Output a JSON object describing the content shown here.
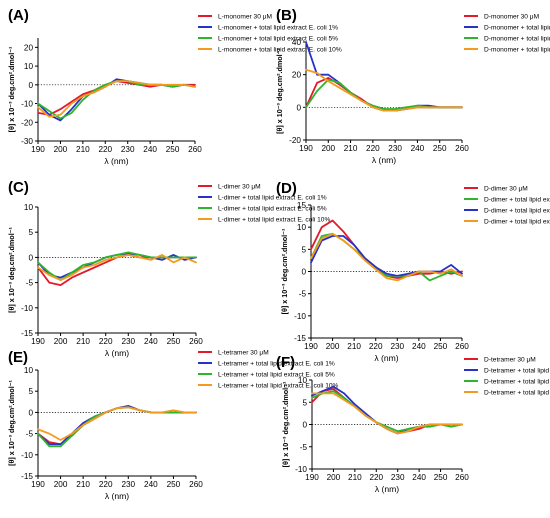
{
  "chart_data": [
    {
      "type": "line",
      "panel": "(A)",
      "xlabel": "λ (nm)",
      "ylabel": "[θ] x 10⁻³ deg.cm².dmol⁻¹",
      "xlim": [
        190,
        260
      ],
      "ylim": [
        -30,
        25
      ],
      "xticks": [
        190,
        200,
        210,
        220,
        230,
        240,
        250,
        260
      ],
      "yticks": [
        -30,
        -20,
        -10,
        0,
        10,
        20
      ],
      "legend_position": "top-right",
      "x": [
        190,
        195,
        200,
        205,
        210,
        215,
        220,
        225,
        230,
        235,
        240,
        245,
        250,
        255,
        260
      ],
      "series": [
        {
          "name": "L-monomer 30 μM",
          "color": "#e3192c",
          "values": [
            -15,
            -16,
            -13,
            -9,
            -5,
            -3,
            0,
            2,
            1,
            0,
            -1,
            0,
            -1,
            0,
            0
          ]
        },
        {
          "name": "L-monomer + total lipid extract E. coli 1%",
          "color": "#2832c8",
          "values": [
            -10,
            -16,
            -19,
            -13,
            -6,
            -4,
            -1,
            3,
            2,
            1,
            0,
            0,
            -1,
            0,
            -1
          ]
        },
        {
          "name": "L-monomer + total lipid extract E. coli 5%",
          "color": "#2db52d",
          "values": [
            -10,
            -14,
            -18,
            -15,
            -8,
            -3,
            0,
            2,
            2,
            0,
            0,
            0,
            -1,
            0,
            -1
          ]
        },
        {
          "name": "L-monomer + total lipid extract E. coli 10%",
          "color": "#f39a1f",
          "values": [
            -12,
            -17,
            -16,
            -10,
            -6,
            -4,
            -1,
            2,
            2,
            1,
            0,
            0,
            0,
            0,
            -1
          ]
        }
      ]
    },
    {
      "type": "line",
      "panel": "(B)",
      "xlabel": "λ (nm)",
      "ylabel": "[θ] x 10⁻³ deg.cm².dmol⁻¹",
      "xlim": [
        190,
        260
      ],
      "ylim": [
        -20,
        40
      ],
      "xticks": [
        190,
        200,
        210,
        220,
        230,
        240,
        250,
        260
      ],
      "yticks": [
        -20,
        0,
        20,
        40
      ],
      "legend_position": "top-right",
      "x": [
        190,
        195,
        200,
        205,
        210,
        215,
        220,
        225,
        230,
        235,
        240,
        245,
        250,
        255,
        260
      ],
      "series": [
        {
          "name": "D-monomer 30 μM",
          "color": "#e3192c",
          "values": [
            0,
            15,
            18,
            14,
            9,
            5,
            0,
            -2,
            -2,
            -1,
            0,
            0,
            0,
            0,
            0
          ]
        },
        {
          "name": "D-monomer + total lipid extract E. coli 1%",
          "color": "#2832c8",
          "values": [
            40,
            20,
            20,
            15,
            9,
            4,
            1,
            -1,
            -2,
            -1,
            1,
            1,
            0,
            0,
            0
          ]
        },
        {
          "name": "D-monomer + total lipid extract E. coli 5%",
          "color": "#2db52d",
          "values": [
            0,
            10,
            17,
            15,
            9,
            4,
            1,
            -1,
            -1,
            0,
            1,
            0,
            0,
            0,
            0
          ]
        },
        {
          "name": "D-monomer + total lipid extract E. coli 10%",
          "color": "#f39a1f",
          "values": [
            23,
            21,
            16,
            12,
            8,
            4,
            0,
            -2,
            -2,
            -1,
            0,
            0,
            0,
            0,
            0
          ]
        }
      ]
    },
    {
      "type": "line",
      "panel": "(C)",
      "xlabel": "λ (nm)",
      "ylabel": "[θ] x 10⁻³ deg.cm².dmol⁻¹",
      "xlim": [
        190,
        260
      ],
      "ylim": [
        -15,
        10
      ],
      "xticks": [
        190,
        200,
        210,
        220,
        230,
        240,
        250,
        260
      ],
      "yticks": [
        -15,
        -10,
        -5,
        0,
        5,
        10
      ],
      "legend_position": "top-right",
      "x": [
        190,
        195,
        200,
        205,
        210,
        215,
        220,
        225,
        230,
        235,
        240,
        245,
        250,
        255,
        260
      ],
      "series": [
        {
          "name": "L-dimer 30 μM",
          "color": "#e3192c",
          "values": [
            -2,
            -5,
            -5.5,
            -4,
            -3,
            -2,
            -1,
            0,
            0.5,
            0,
            0,
            0,
            0,
            0,
            0
          ]
        },
        {
          "name": "L-dimer + total lipid extract E. coli 1%",
          "color": "#2832c8",
          "values": [
            -1,
            -3.5,
            -4,
            -3,
            -2,
            -1,
            0,
            0.5,
            0.8,
            0.5,
            0,
            -0.5,
            0.5,
            -0.5,
            0
          ]
        },
        {
          "name": "L-dimer + total lipid extract E. coli 5%",
          "color": "#2db52d",
          "values": [
            -1,
            -3,
            -4.5,
            -3,
            -1.5,
            -1,
            0,
            0.5,
            1,
            0.5,
            0,
            0,
            0,
            0,
            0
          ]
        },
        {
          "name": "L-dimer + total lipid extract E. coli 10%",
          "color": "#f39a1f",
          "values": [
            -2,
            -3.5,
            -4.5,
            -3.5,
            -2,
            -1.5,
            -0.5,
            0,
            0.5,
            0,
            -0.5,
            0.5,
            -1,
            0,
            -1
          ]
        }
      ]
    },
    {
      "type": "line",
      "panel": "(D)",
      "xlabel": "λ (nm)",
      "ylabel": "[θ] x 10⁻³ deg.cm².dmol⁻¹",
      "xlim": [
        190,
        260
      ],
      "ylim": [
        -15,
        15
      ],
      "xticks": [
        190,
        200,
        210,
        220,
        230,
        240,
        250,
        260
      ],
      "yticks": [
        -15,
        -10,
        -5,
        0,
        5,
        10,
        15
      ],
      "legend_position": "top-right",
      "x": [
        190,
        195,
        200,
        205,
        210,
        215,
        220,
        225,
        230,
        235,
        240,
        245,
        250,
        255,
        260
      ],
      "series": [
        {
          "name": "D-dimer 30 μM",
          "color": "#e3192c",
          "values": [
            5,
            10,
            11.5,
            9,
            6,
            3,
            1,
            -1,
            -1.5,
            -1,
            -0.5,
            -0.5,
            0,
            -0.5,
            0
          ]
        },
        {
          "name": "D-dimer + total lipid extract E. coli 1%",
          "color": "#2db52d",
          "values": [
            3,
            8,
            8.5,
            7,
            5,
            3,
            1,
            -1,
            -1,
            -1,
            0,
            -2,
            -1,
            0,
            -1
          ]
        },
        {
          "name": "D-dimer + total lipid extract E. coli 5%",
          "color": "#2832c8",
          "values": [
            2,
            7,
            8,
            8,
            6,
            3,
            1,
            -0.5,
            -1,
            -0.5,
            0,
            0,
            0,
            1.5,
            -0.5
          ]
        },
        {
          "name": "D-dimer + total lipid extract E. coli 10%",
          "color": "#f39a1f",
          "values": [
            3,
            7.5,
            8.5,
            7,
            5,
            2.5,
            0.5,
            -1.5,
            -2,
            -1,
            0,
            0,
            -0.5,
            0.5,
            -1
          ]
        }
      ]
    },
    {
      "type": "line",
      "panel": "(E)",
      "xlabel": "λ (nm)",
      "ylabel": "[θ] x 10⁻³ deg.cm².dmol⁻¹",
      "xlim": [
        190,
        260
      ],
      "ylim": [
        -15,
        10
      ],
      "xticks": [
        190,
        200,
        210,
        220,
        230,
        240,
        250,
        260
      ],
      "yticks": [
        -15,
        -10,
        -5,
        0,
        5,
        10
      ],
      "legend_position": "top-right",
      "x": [
        190,
        195,
        200,
        205,
        210,
        215,
        220,
        225,
        230,
        235,
        240,
        245,
        250,
        255,
        260
      ],
      "series": [
        {
          "name": "L-tetramer 30 μM",
          "color": "#e3192c",
          "values": [
            -5,
            -7,
            -7.5,
            -5.5,
            -3,
            -1.5,
            0,
            1,
            1.5,
            0.5,
            0,
            0,
            0,
            0,
            0
          ]
        },
        {
          "name": "L-tetramer + total lipid extract E. coli 1%",
          "color": "#2832c8",
          "values": [
            -5,
            -7.5,
            -7.5,
            -5,
            -2.5,
            -1,
            0,
            1,
            1.5,
            0.5,
            0,
            0,
            0,
            0,
            0
          ]
        },
        {
          "name": "L-tetramer + total lipid extract E. coli 5%",
          "color": "#2db52d",
          "values": [
            -5,
            -8,
            -8,
            -5.5,
            -3,
            -1,
            0,
            1,
            1.2,
            0.5,
            0,
            0,
            0,
            0,
            0
          ]
        },
        {
          "name": "L-tetramer + total lipid extract E. coli 10%",
          "color": "#f39a1f",
          "values": [
            -4,
            -5,
            -6.5,
            -5,
            -3,
            -1.5,
            0,
            1,
            1.2,
            0.5,
            0,
            0,
            0.5,
            0,
            0
          ]
        }
      ]
    },
    {
      "type": "line",
      "panel": "(F)",
      "xlabel": "λ (nm)",
      "ylabel": "[θ] x 10⁻³ deg.cm².dmol⁻¹",
      "xlim": [
        190,
        260
      ],
      "ylim": [
        -10,
        10
      ],
      "xticks": [
        190,
        200,
        210,
        220,
        230,
        240,
        250,
        260
      ],
      "yticks": [
        -10,
        -5,
        0,
        5,
        10
      ],
      "legend_position": "top-right",
      "x": [
        190,
        195,
        200,
        205,
        210,
        215,
        220,
        225,
        230,
        235,
        240,
        245,
        250,
        255,
        260
      ],
      "series": [
        {
          "name": "D-tetramer 30 μM",
          "color": "#e3192c",
          "values": [
            5,
            7.5,
            8,
            6,
            4,
            2,
            0.5,
            -1,
            -2,
            -1.5,
            -1,
            0,
            0,
            0,
            0
          ]
        },
        {
          "name": "D-tetramer + total lipid extract E. coli 1%",
          "color": "#2832c8",
          "values": [
            6.5,
            7.5,
            8.5,
            7,
            4.5,
            2.5,
            0.5,
            -1,
            -2,
            -1,
            -0.5,
            0,
            0,
            0,
            0
          ]
        },
        {
          "name": "D-tetramer + total lipid extract E. coli 5%",
          "color": "#2db52d",
          "values": [
            6,
            7,
            7.5,
            6,
            4,
            2,
            0.5,
            -0.5,
            -1.5,
            -1,
            -0.5,
            -0.5,
            0,
            -0.5,
            0
          ]
        },
        {
          "name": "D-tetramer + total lipid extract E. coli 10%",
          "color": "#f39a1f",
          "values": [
            7,
            7,
            7,
            5.5,
            4,
            2,
            0.5,
            -1,
            -2,
            -1.5,
            -0.5,
            0,
            0,
            0,
            0
          ]
        }
      ]
    }
  ]
}
